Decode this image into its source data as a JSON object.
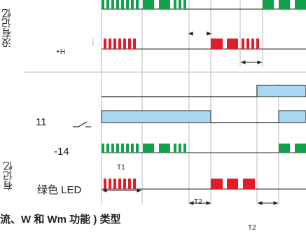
{
  "side_labels": {
    "no_memory": "没有记忆",
    "with_memory": "有记忆"
  },
  "row_labels": {
    "plus_h": "+H",
    "eleven": "11",
    "minus14": "-14",
    "green_led": "绿色 LED"
  },
  "timing_labels": {
    "t1": "T1",
    "t2_upper": "T2",
    "t2_lower": "T2"
  },
  "caption": "流、W 和 Wm 功能 ) 类型",
  "colors": {
    "green": "#12a04a",
    "red": "#e11d2a",
    "blue_fill": "#a9d8f2",
    "line": "#222222",
    "grid": "#bbbbbb"
  }
}
